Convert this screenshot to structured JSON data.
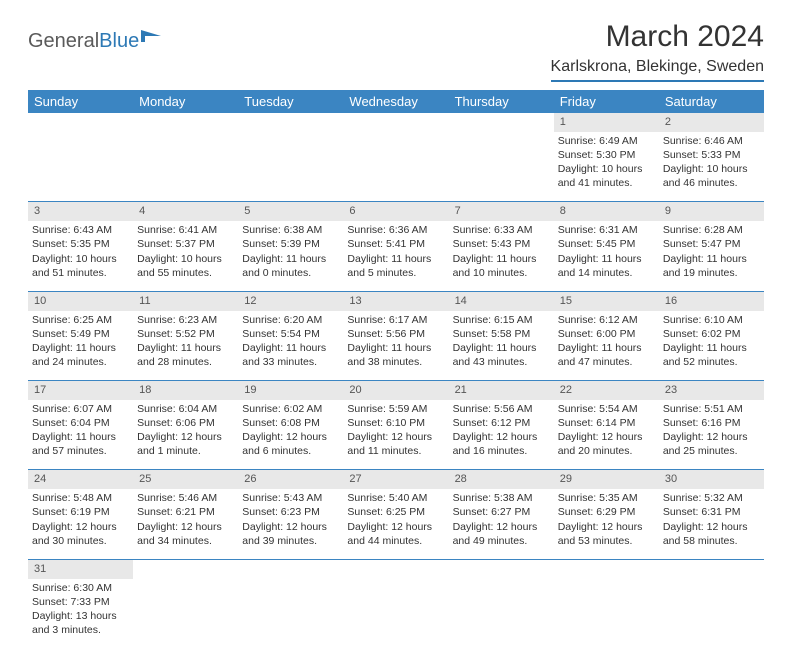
{
  "logo": {
    "part1": "General",
    "part2": "Blue"
  },
  "title": "March 2024",
  "location": "Karlskrona, Blekinge, Sweden",
  "colors": {
    "header_bg": "#3b85c2",
    "header_text": "#ffffff",
    "daynum_bg": "#e8e8e8",
    "border": "#3b85c2",
    "logo_gray": "#5a5a5a",
    "logo_blue": "#2d79b5"
  },
  "dayHeaders": [
    "Sunday",
    "Monday",
    "Tuesday",
    "Wednesday",
    "Thursday",
    "Friday",
    "Saturday"
  ],
  "weeks": [
    {
      "nums": [
        "",
        "",
        "",
        "",
        "",
        "1",
        "2"
      ],
      "cells": [
        null,
        null,
        null,
        null,
        null,
        {
          "sunrise": "Sunrise: 6:49 AM",
          "sunset": "Sunset: 5:30 PM",
          "daylight1": "Daylight: 10 hours",
          "daylight2": "and 41 minutes."
        },
        {
          "sunrise": "Sunrise: 6:46 AM",
          "sunset": "Sunset: 5:33 PM",
          "daylight1": "Daylight: 10 hours",
          "daylight2": "and 46 minutes."
        }
      ]
    },
    {
      "nums": [
        "3",
        "4",
        "5",
        "6",
        "7",
        "8",
        "9"
      ],
      "cells": [
        {
          "sunrise": "Sunrise: 6:43 AM",
          "sunset": "Sunset: 5:35 PM",
          "daylight1": "Daylight: 10 hours",
          "daylight2": "and 51 minutes."
        },
        {
          "sunrise": "Sunrise: 6:41 AM",
          "sunset": "Sunset: 5:37 PM",
          "daylight1": "Daylight: 10 hours",
          "daylight2": "and 55 minutes."
        },
        {
          "sunrise": "Sunrise: 6:38 AM",
          "sunset": "Sunset: 5:39 PM",
          "daylight1": "Daylight: 11 hours",
          "daylight2": "and 0 minutes."
        },
        {
          "sunrise": "Sunrise: 6:36 AM",
          "sunset": "Sunset: 5:41 PM",
          "daylight1": "Daylight: 11 hours",
          "daylight2": "and 5 minutes."
        },
        {
          "sunrise": "Sunrise: 6:33 AM",
          "sunset": "Sunset: 5:43 PM",
          "daylight1": "Daylight: 11 hours",
          "daylight2": "and 10 minutes."
        },
        {
          "sunrise": "Sunrise: 6:31 AM",
          "sunset": "Sunset: 5:45 PM",
          "daylight1": "Daylight: 11 hours",
          "daylight2": "and 14 minutes."
        },
        {
          "sunrise": "Sunrise: 6:28 AM",
          "sunset": "Sunset: 5:47 PM",
          "daylight1": "Daylight: 11 hours",
          "daylight2": "and 19 minutes."
        }
      ]
    },
    {
      "nums": [
        "10",
        "11",
        "12",
        "13",
        "14",
        "15",
        "16"
      ],
      "cells": [
        {
          "sunrise": "Sunrise: 6:25 AM",
          "sunset": "Sunset: 5:49 PM",
          "daylight1": "Daylight: 11 hours",
          "daylight2": "and 24 minutes."
        },
        {
          "sunrise": "Sunrise: 6:23 AM",
          "sunset": "Sunset: 5:52 PM",
          "daylight1": "Daylight: 11 hours",
          "daylight2": "and 28 minutes."
        },
        {
          "sunrise": "Sunrise: 6:20 AM",
          "sunset": "Sunset: 5:54 PM",
          "daylight1": "Daylight: 11 hours",
          "daylight2": "and 33 minutes."
        },
        {
          "sunrise": "Sunrise: 6:17 AM",
          "sunset": "Sunset: 5:56 PM",
          "daylight1": "Daylight: 11 hours",
          "daylight2": "and 38 minutes."
        },
        {
          "sunrise": "Sunrise: 6:15 AM",
          "sunset": "Sunset: 5:58 PM",
          "daylight1": "Daylight: 11 hours",
          "daylight2": "and 43 minutes."
        },
        {
          "sunrise": "Sunrise: 6:12 AM",
          "sunset": "Sunset: 6:00 PM",
          "daylight1": "Daylight: 11 hours",
          "daylight2": "and 47 minutes."
        },
        {
          "sunrise": "Sunrise: 6:10 AM",
          "sunset": "Sunset: 6:02 PM",
          "daylight1": "Daylight: 11 hours",
          "daylight2": "and 52 minutes."
        }
      ]
    },
    {
      "nums": [
        "17",
        "18",
        "19",
        "20",
        "21",
        "22",
        "23"
      ],
      "cells": [
        {
          "sunrise": "Sunrise: 6:07 AM",
          "sunset": "Sunset: 6:04 PM",
          "daylight1": "Daylight: 11 hours",
          "daylight2": "and 57 minutes."
        },
        {
          "sunrise": "Sunrise: 6:04 AM",
          "sunset": "Sunset: 6:06 PM",
          "daylight1": "Daylight: 12 hours",
          "daylight2": "and 1 minute."
        },
        {
          "sunrise": "Sunrise: 6:02 AM",
          "sunset": "Sunset: 6:08 PM",
          "daylight1": "Daylight: 12 hours",
          "daylight2": "and 6 minutes."
        },
        {
          "sunrise": "Sunrise: 5:59 AM",
          "sunset": "Sunset: 6:10 PM",
          "daylight1": "Daylight: 12 hours",
          "daylight2": "and 11 minutes."
        },
        {
          "sunrise": "Sunrise: 5:56 AM",
          "sunset": "Sunset: 6:12 PM",
          "daylight1": "Daylight: 12 hours",
          "daylight2": "and 16 minutes."
        },
        {
          "sunrise": "Sunrise: 5:54 AM",
          "sunset": "Sunset: 6:14 PM",
          "daylight1": "Daylight: 12 hours",
          "daylight2": "and 20 minutes."
        },
        {
          "sunrise": "Sunrise: 5:51 AM",
          "sunset": "Sunset: 6:16 PM",
          "daylight1": "Daylight: 12 hours",
          "daylight2": "and 25 minutes."
        }
      ]
    },
    {
      "nums": [
        "24",
        "25",
        "26",
        "27",
        "28",
        "29",
        "30"
      ],
      "cells": [
        {
          "sunrise": "Sunrise: 5:48 AM",
          "sunset": "Sunset: 6:19 PM",
          "daylight1": "Daylight: 12 hours",
          "daylight2": "and 30 minutes."
        },
        {
          "sunrise": "Sunrise: 5:46 AM",
          "sunset": "Sunset: 6:21 PM",
          "daylight1": "Daylight: 12 hours",
          "daylight2": "and 34 minutes."
        },
        {
          "sunrise": "Sunrise: 5:43 AM",
          "sunset": "Sunset: 6:23 PM",
          "daylight1": "Daylight: 12 hours",
          "daylight2": "and 39 minutes."
        },
        {
          "sunrise": "Sunrise: 5:40 AM",
          "sunset": "Sunset: 6:25 PM",
          "daylight1": "Daylight: 12 hours",
          "daylight2": "and 44 minutes."
        },
        {
          "sunrise": "Sunrise: 5:38 AM",
          "sunset": "Sunset: 6:27 PM",
          "daylight1": "Daylight: 12 hours",
          "daylight2": "and 49 minutes."
        },
        {
          "sunrise": "Sunrise: 5:35 AM",
          "sunset": "Sunset: 6:29 PM",
          "daylight1": "Daylight: 12 hours",
          "daylight2": "and 53 minutes."
        },
        {
          "sunrise": "Sunrise: 5:32 AM",
          "sunset": "Sunset: 6:31 PM",
          "daylight1": "Daylight: 12 hours",
          "daylight2": "and 58 minutes."
        }
      ]
    },
    {
      "nums": [
        "31",
        "",
        "",
        "",
        "",
        "",
        ""
      ],
      "cells": [
        {
          "sunrise": "Sunrise: 6:30 AM",
          "sunset": "Sunset: 7:33 PM",
          "daylight1": "Daylight: 13 hours",
          "daylight2": "and 3 minutes."
        },
        null,
        null,
        null,
        null,
        null,
        null
      ]
    }
  ]
}
